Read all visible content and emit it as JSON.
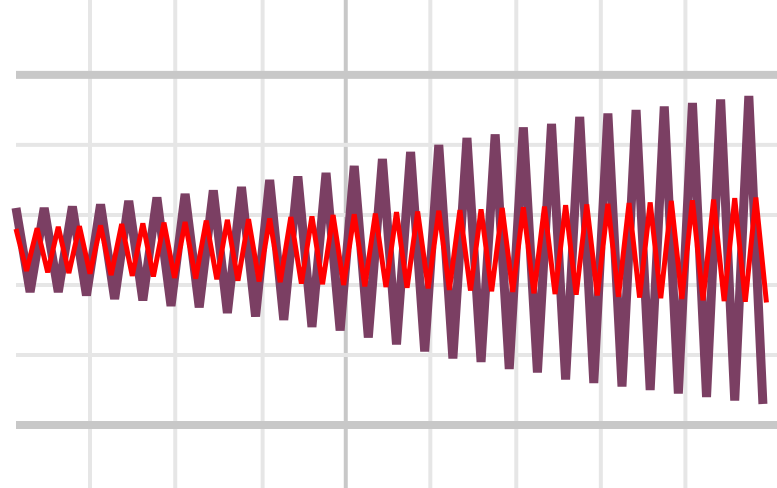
{
  "chart_data": {
    "type": "line",
    "xlim": [
      0,
      54
    ],
    "ylim": [
      -3.4,
      3.57
    ],
    "xgrid": [
      {
        "value": 5.25,
        "major": false
      },
      {
        "value": 11.3,
        "major": false
      },
      {
        "value": 17.5,
        "major": false
      },
      {
        "value": 23.4,
        "major": true
      },
      {
        "value": 29.4,
        "major": false
      },
      {
        "value": 35.5,
        "major": false
      },
      {
        "value": 41.5,
        "major": false
      },
      {
        "value": 47.5,
        "major": false
      }
    ],
    "ygrid": [
      {
        "value": 2.5,
        "major": true
      },
      {
        "value": 1.5,
        "major": false
      },
      {
        "value": 0.5,
        "major": false
      },
      {
        "value": -0.5,
        "major": false
      },
      {
        "value": -1.5,
        "major": false
      },
      {
        "value": -2.5,
        "major": true
      }
    ],
    "series": [
      {
        "color": "#7b3f63",
        "width": 9,
        "x": [
          0,
          1,
          2,
          3,
          4,
          5,
          6,
          7,
          8,
          9,
          10,
          11,
          12,
          13,
          14,
          15,
          16,
          17,
          18,
          19,
          20,
          21,
          22,
          23,
          24,
          25,
          26,
          27,
          28,
          29,
          30,
          31,
          32,
          33,
          34,
          35,
          36,
          37,
          38,
          39,
          40,
          41,
          42,
          43,
          44,
          45,
          46,
          47,
          48,
          49,
          50,
          51,
          52,
          53
        ],
        "values": [
          0.6,
          -0.6,
          0.6,
          -0.6,
          0.62,
          -0.65,
          0.65,
          -0.7,
          0.7,
          -0.72,
          0.75,
          -0.8,
          0.8,
          -0.82,
          0.85,
          -0.9,
          0.9,
          -0.95,
          1.0,
          -1.0,
          1.05,
          -1.1,
          1.1,
          -1.15,
          1.2,
          -1.25,
          1.3,
          -1.35,
          1.4,
          -1.45,
          1.5,
          -1.55,
          1.6,
          -1.6,
          1.65,
          -1.7,
          1.75,
          -1.75,
          1.8,
          -1.85,
          1.9,
          -1.9,
          1.95,
          -1.95,
          2.0,
          -2.0,
          2.05,
          -2.05,
          2.1,
          -2.1,
          2.15,
          -2.15,
          2.2,
          -2.2
        ]
      },
      {
        "color": "#ff0000",
        "width": 5,
        "x": [
          0,
          0.75,
          1.5,
          2.25,
          3,
          3.75,
          4.5,
          5.25,
          6,
          6.75,
          7.5,
          8.25,
          9,
          9.75,
          10.5,
          11.25,
          12,
          12.75,
          13.5,
          14.25,
          15,
          15.75,
          16.5,
          17.25,
          18,
          18.75,
          19.5,
          20.25,
          21,
          21.75,
          22.5,
          23.25,
          24,
          24.75,
          25.5,
          26.25,
          27,
          27.75,
          28.5,
          29.25,
          30,
          30.75,
          31.5,
          32.25,
          33,
          33.75,
          34.5,
          35.25,
          36,
          36.75,
          37.5,
          38.25,
          39,
          39.75,
          40.5,
          41.25,
          42,
          42.75,
          43.5,
          44.25,
          45,
          45.75,
          46.5,
          47.25,
          48,
          48.75,
          49.5,
          50.25,
          51,
          51.75,
          52.5,
          53.25
        ],
        "values": [
          0.3,
          -0.3,
          0.31,
          -0.32,
          0.33,
          -0.33,
          0.34,
          -0.34,
          0.35,
          -0.36,
          0.37,
          -0.37,
          0.38,
          -0.38,
          0.39,
          -0.4,
          0.4,
          -0.41,
          0.42,
          -0.42,
          0.43,
          -0.44,
          0.44,
          -0.45,
          0.45,
          -0.46,
          0.47,
          -0.48,
          0.48,
          -0.49,
          0.5,
          -0.5,
          0.51,
          -0.52,
          0.52,
          -0.53,
          0.54,
          -0.54,
          0.55,
          -0.55,
          0.56,
          -0.57,
          0.57,
          -0.58,
          0.58,
          -0.59,
          0.6,
          -0.6,
          0.61,
          -0.62,
          0.62,
          -0.63,
          0.64,
          -0.64,
          0.65,
          -0.65,
          0.66,
          -0.67,
          0.67,
          -0.68,
          0.68,
          -0.69,
          0.7,
          -0.7,
          0.71,
          -0.72,
          0.72,
          -0.73,
          0.74,
          -0.74,
          0.75,
          -0.75
        ]
      }
    ]
  }
}
